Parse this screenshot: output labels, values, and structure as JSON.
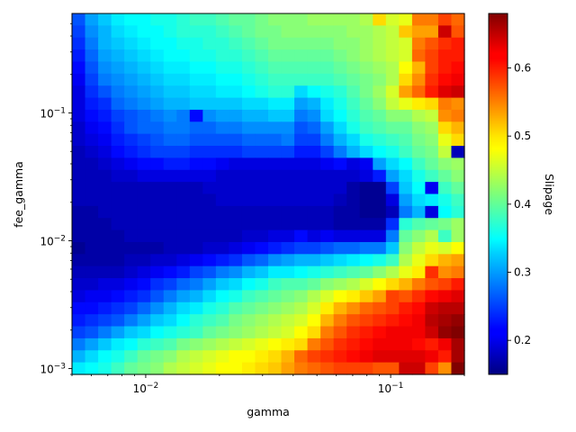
{
  "chart_data": {
    "type": "heatmap",
    "title": "",
    "xlabel": "gamma",
    "ylabel": "fee_gamma",
    "colorbar_label": "Slipage",
    "x_scale": "log",
    "y_scale": "log",
    "xlim": [
      0.005,
      0.2
    ],
    "ylim": [
      0.0009,
      0.6
    ],
    "x_ticks": [
      {
        "value": 0.01,
        "base": "10",
        "exp": "−2"
      },
      {
        "value": 0.1,
        "base": "10",
        "exp": "−1"
      }
    ],
    "y_ticks": [
      {
        "value": 0.001,
        "base": "10",
        "exp": "−3"
      },
      {
        "value": 0.01,
        "base": "10",
        "exp": "−2"
      },
      {
        "value": 0.1,
        "base": "10",
        "exp": "−1"
      }
    ],
    "colormap": "jet",
    "vmin": 0.15,
    "vmax": 0.68,
    "colorbar_ticks": [
      "0.2",
      "0.3",
      "0.4",
      "0.5",
      "0.6"
    ],
    "grid": false,
    "n_cols": 30,
    "n_rows": 30,
    "z_rows_top_to_bottom": [
      [
        0.26,
        0.3,
        0.32,
        0.34,
        0.35,
        0.35,
        0.36,
        0.36,
        0.37,
        0.38,
        0.38,
        0.39,
        0.4,
        0.4,
        0.41,
        0.42,
        0.42,
        0.42,
        0.43,
        0.43,
        0.43,
        0.43,
        0.44,
        0.5,
        0.46,
        0.47,
        0.55,
        0.55,
        0.58,
        0.56
      ],
      [
        0.25,
        0.29,
        0.31,
        0.33,
        0.34,
        0.35,
        0.35,
        0.36,
        0.37,
        0.37,
        0.37,
        0.38,
        0.39,
        0.4,
        0.41,
        0.41,
        0.42,
        0.42,
        0.42,
        0.42,
        0.42,
        0.43,
        0.43,
        0.44,
        0.45,
        0.51,
        0.53,
        0.53,
        0.64,
        0.57
      ],
      [
        0.24,
        0.28,
        0.31,
        0.32,
        0.33,
        0.34,
        0.35,
        0.35,
        0.36,
        0.36,
        0.37,
        0.37,
        0.38,
        0.39,
        0.4,
        0.41,
        0.41,
        0.41,
        0.41,
        0.41,
        0.42,
        0.42,
        0.43,
        0.44,
        0.45,
        0.46,
        0.55,
        0.57,
        0.59,
        0.6
      ],
      [
        0.23,
        0.27,
        0.3,
        0.31,
        0.32,
        0.33,
        0.34,
        0.35,
        0.35,
        0.36,
        0.36,
        0.37,
        0.37,
        0.38,
        0.39,
        0.4,
        0.4,
        0.4,
        0.4,
        0.4,
        0.41,
        0.42,
        0.43,
        0.44,
        0.45,
        0.46,
        0.56,
        0.58,
        0.6,
        0.6
      ],
      [
        0.22,
        0.26,
        0.29,
        0.3,
        0.31,
        0.32,
        0.33,
        0.34,
        0.34,
        0.35,
        0.35,
        0.36,
        0.36,
        0.37,
        0.38,
        0.39,
        0.39,
        0.39,
        0.39,
        0.39,
        0.4,
        0.41,
        0.42,
        0.43,
        0.44,
        0.48,
        0.52,
        0.58,
        0.6,
        0.61
      ],
      [
        0.21,
        0.25,
        0.28,
        0.29,
        0.3,
        0.31,
        0.32,
        0.33,
        0.33,
        0.34,
        0.34,
        0.35,
        0.35,
        0.36,
        0.37,
        0.38,
        0.38,
        0.38,
        0.38,
        0.38,
        0.39,
        0.4,
        0.41,
        0.42,
        0.44,
        0.5,
        0.54,
        0.59,
        0.61,
        0.62
      ],
      [
        0.2,
        0.24,
        0.26,
        0.28,
        0.29,
        0.3,
        0.31,
        0.32,
        0.32,
        0.33,
        0.33,
        0.34,
        0.34,
        0.35,
        0.36,
        0.37,
        0.37,
        0.33,
        0.35,
        0.36,
        0.37,
        0.39,
        0.41,
        0.43,
        0.46,
        0.53,
        0.56,
        0.6,
        0.63,
        0.64
      ],
      [
        0.2,
        0.23,
        0.24,
        0.27,
        0.28,
        0.29,
        0.3,
        0.31,
        0.31,
        0.32,
        0.32,
        0.32,
        0.32,
        0.33,
        0.33,
        0.34,
        0.34,
        0.3,
        0.31,
        0.34,
        0.36,
        0.38,
        0.4,
        0.42,
        0.45,
        0.47,
        0.49,
        0.5,
        0.55,
        0.54
      ],
      [
        0.2,
        0.22,
        0.23,
        0.25,
        0.26,
        0.27,
        0.28,
        0.29,
        0.28,
        0.22,
        0.29,
        0.3,
        0.3,
        0.31,
        0.31,
        0.32,
        0.32,
        0.28,
        0.29,
        0.33,
        0.35,
        0.37,
        0.39,
        0.4,
        0.42,
        0.42,
        0.44,
        0.45,
        0.54,
        0.55
      ],
      [
        0.19,
        0.21,
        0.22,
        0.24,
        0.26,
        0.27,
        0.27,
        0.28,
        0.28,
        0.27,
        0.27,
        0.28,
        0.28,
        0.29,
        0.29,
        0.29,
        0.29,
        0.26,
        0.27,
        0.3,
        0.33,
        0.36,
        0.38,
        0.39,
        0.4,
        0.4,
        0.42,
        0.43,
        0.5,
        0.52
      ],
      [
        0.19,
        0.2,
        0.21,
        0.23,
        0.24,
        0.25,
        0.26,
        0.27,
        0.27,
        0.26,
        0.26,
        0.26,
        0.26,
        0.27,
        0.27,
        0.27,
        0.28,
        0.25,
        0.25,
        0.28,
        0.31,
        0.33,
        0.36,
        0.37,
        0.38,
        0.39,
        0.41,
        0.42,
        0.47,
        0.5
      ],
      [
        0.18,
        0.19,
        0.2,
        0.22,
        0.23,
        0.24,
        0.25,
        0.25,
        0.25,
        0.24,
        0.24,
        0.24,
        0.24,
        0.25,
        0.25,
        0.25,
        0.25,
        0.23,
        0.23,
        0.25,
        0.28,
        0.31,
        0.33,
        0.35,
        0.36,
        0.38,
        0.4,
        0.41,
        0.45,
        0.18
      ],
      [
        0.18,
        0.18,
        0.19,
        0.2,
        0.21,
        0.22,
        0.22,
        0.23,
        0.23,
        0.22,
        0.22,
        0.21,
        0.2,
        0.2,
        0.2,
        0.2,
        0.2,
        0.2,
        0.2,
        0.21,
        0.22,
        0.2,
        0.21,
        0.3,
        0.33,
        0.35,
        0.38,
        0.4,
        0.42,
        0.43
      ],
      [
        0.18,
        0.18,
        0.18,
        0.19,
        0.19,
        0.2,
        0.2,
        0.2,
        0.2,
        0.2,
        0.2,
        0.19,
        0.19,
        0.19,
        0.19,
        0.19,
        0.19,
        0.19,
        0.19,
        0.19,
        0.19,
        0.19,
        0.2,
        0.23,
        0.3,
        0.33,
        0.36,
        0.38,
        0.4,
        0.42
      ],
      [
        0.18,
        0.18,
        0.18,
        0.18,
        0.18,
        0.18,
        0.18,
        0.18,
        0.18,
        0.18,
        0.19,
        0.19,
        0.19,
        0.19,
        0.19,
        0.19,
        0.19,
        0.19,
        0.19,
        0.19,
        0.19,
        0.17,
        0.16,
        0.16,
        0.25,
        0.32,
        0.35,
        0.21,
        0.38,
        0.4
      ],
      [
        0.18,
        0.18,
        0.18,
        0.18,
        0.18,
        0.18,
        0.18,
        0.18,
        0.18,
        0.18,
        0.18,
        0.19,
        0.19,
        0.19,
        0.19,
        0.19,
        0.19,
        0.19,
        0.19,
        0.19,
        0.18,
        0.17,
        0.16,
        0.16,
        0.2,
        0.3,
        0.33,
        0.34,
        0.36,
        0.38
      ],
      [
        0.17,
        0.17,
        0.18,
        0.18,
        0.18,
        0.18,
        0.18,
        0.18,
        0.18,
        0.18,
        0.18,
        0.18,
        0.18,
        0.18,
        0.18,
        0.18,
        0.18,
        0.18,
        0.18,
        0.18,
        0.17,
        0.17,
        0.16,
        0.16,
        0.18,
        0.28,
        0.31,
        0.2,
        0.35,
        0.37
      ],
      [
        0.17,
        0.17,
        0.17,
        0.18,
        0.18,
        0.18,
        0.18,
        0.18,
        0.18,
        0.18,
        0.18,
        0.18,
        0.18,
        0.18,
        0.18,
        0.18,
        0.18,
        0.18,
        0.18,
        0.18,
        0.17,
        0.17,
        0.17,
        0.17,
        0.24,
        0.37,
        0.39,
        0.4,
        0.41,
        0.43
      ],
      [
        0.17,
        0.17,
        0.17,
        0.17,
        0.18,
        0.18,
        0.18,
        0.18,
        0.18,
        0.18,
        0.18,
        0.18,
        0.18,
        0.19,
        0.19,
        0.2,
        0.2,
        0.22,
        0.2,
        0.21,
        0.2,
        0.2,
        0.2,
        0.2,
        0.28,
        0.4,
        0.42,
        0.44,
        0.38,
        0.43
      ],
      [
        0.16,
        0.17,
        0.17,
        0.17,
        0.17,
        0.17,
        0.17,
        0.18,
        0.18,
        0.18,
        0.19,
        0.19,
        0.2,
        0.21,
        0.22,
        0.23,
        0.24,
        0.25,
        0.25,
        0.26,
        0.27,
        0.27,
        0.28,
        0.28,
        0.32,
        0.42,
        0.45,
        0.47,
        0.46,
        0.48
      ],
      [
        0.17,
        0.17,
        0.17,
        0.17,
        0.18,
        0.18,
        0.19,
        0.19,
        0.2,
        0.21,
        0.22,
        0.23,
        0.24,
        0.26,
        0.27,
        0.29,
        0.3,
        0.31,
        0.31,
        0.32,
        0.33,
        0.34,
        0.35,
        0.36,
        0.38,
        0.44,
        0.47,
        0.5,
        0.52,
        0.53
      ],
      [
        0.18,
        0.18,
        0.18,
        0.18,
        0.19,
        0.2,
        0.21,
        0.22,
        0.23,
        0.25,
        0.26,
        0.28,
        0.29,
        0.31,
        0.32,
        0.34,
        0.34,
        0.35,
        0.36,
        0.37,
        0.38,
        0.39,
        0.4,
        0.42,
        0.44,
        0.47,
        0.49,
        0.59,
        0.54,
        0.55
      ],
      [
        0.19,
        0.19,
        0.2,
        0.2,
        0.21,
        0.22,
        0.24,
        0.25,
        0.27,
        0.28,
        0.3,
        0.32,
        0.33,
        0.35,
        0.36,
        0.38,
        0.39,
        0.39,
        0.4,
        0.42,
        0.43,
        0.44,
        0.46,
        0.48,
        0.5,
        0.52,
        0.55,
        0.57,
        0.58,
        0.6
      ],
      [
        0.2,
        0.21,
        0.21,
        0.22,
        0.23,
        0.24,
        0.26,
        0.28,
        0.3,
        0.31,
        0.33,
        0.35,
        0.36,
        0.38,
        0.39,
        0.4,
        0.41,
        0.42,
        0.44,
        0.46,
        0.48,
        0.49,
        0.51,
        0.53,
        0.58,
        0.57,
        0.59,
        0.61,
        0.62,
        0.63
      ],
      [
        0.22,
        0.22,
        0.23,
        0.24,
        0.25,
        0.27,
        0.29,
        0.31,
        0.33,
        0.34,
        0.36,
        0.37,
        0.39,
        0.4,
        0.41,
        0.42,
        0.43,
        0.44,
        0.46,
        0.49,
        0.52,
        0.54,
        0.56,
        0.57,
        0.58,
        0.6,
        0.61,
        0.64,
        0.65,
        0.65
      ],
      [
        0.23,
        0.24,
        0.25,
        0.26,
        0.28,
        0.3,
        0.32,
        0.33,
        0.35,
        0.37,
        0.38,
        0.39,
        0.41,
        0.42,
        0.43,
        0.44,
        0.45,
        0.46,
        0.48,
        0.52,
        0.55,
        0.57,
        0.58,
        0.59,
        0.6,
        0.61,
        0.62,
        0.65,
        0.66,
        0.67
      ],
      [
        0.25,
        0.26,
        0.28,
        0.3,
        0.32,
        0.33,
        0.35,
        0.36,
        0.37,
        0.38,
        0.4,
        0.41,
        0.42,
        0.43,
        0.44,
        0.45,
        0.46,
        0.48,
        0.5,
        0.55,
        0.57,
        0.59,
        0.6,
        0.61,
        0.62,
        0.62,
        0.62,
        0.64,
        0.67,
        0.68
      ],
      [
        0.28,
        0.3,
        0.32,
        0.34,
        0.35,
        0.37,
        0.38,
        0.39,
        0.41,
        0.42,
        0.43,
        0.44,
        0.45,
        0.46,
        0.47,
        0.48,
        0.49,
        0.5,
        0.55,
        0.57,
        0.59,
        0.6,
        0.61,
        0.62,
        0.62,
        0.62,
        0.61,
        0.6,
        0.62,
        0.66
      ],
      [
        0.31,
        0.33,
        0.35,
        0.36,
        0.38,
        0.4,
        0.41,
        0.42,
        0.44,
        0.45,
        0.46,
        0.47,
        0.48,
        0.48,
        0.49,
        0.5,
        0.52,
        0.56,
        0.58,
        0.59,
        0.6,
        0.61,
        0.62,
        0.63,
        0.63,
        0.63,
        0.63,
        0.62,
        0.6,
        0.66
      ],
      [
        0.34,
        0.35,
        0.36,
        0.38,
        0.4,
        0.41,
        0.42,
        0.44,
        0.45,
        0.46,
        0.47,
        0.48,
        0.48,
        0.49,
        0.5,
        0.51,
        0.53,
        0.55,
        0.56,
        0.57,
        0.58,
        0.58,
        0.58,
        0.57,
        0.57,
        0.64,
        0.64,
        0.58,
        0.54,
        0.68
      ]
    ]
  }
}
